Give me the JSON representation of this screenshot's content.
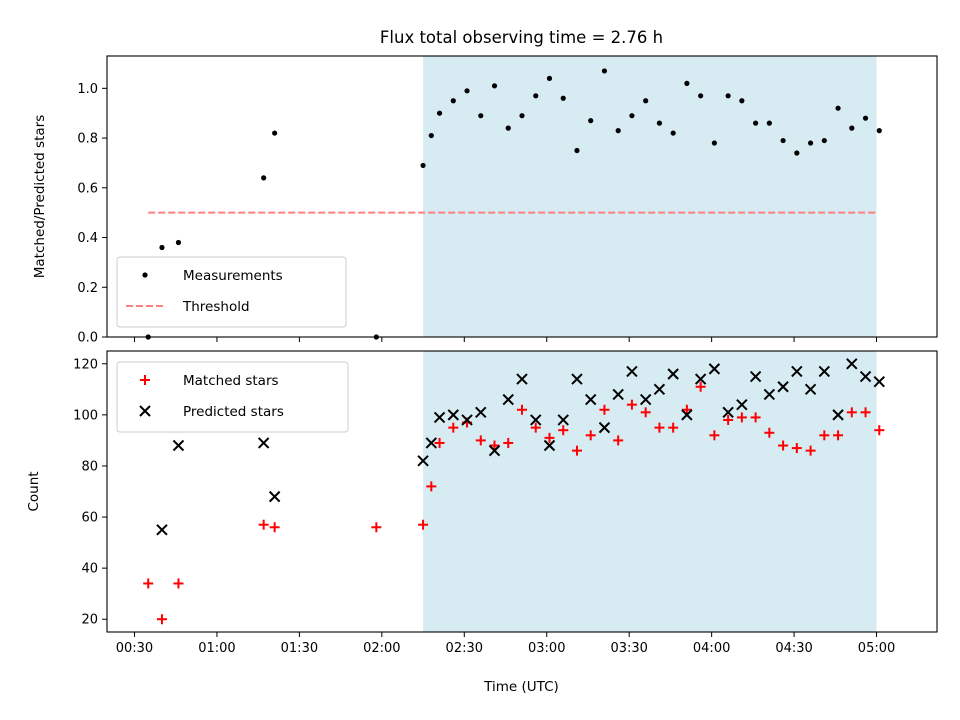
{
  "chart_data": {
    "type": "scatter",
    "title": "Flux total observing time = 2.76 h",
    "xlabel": "Time (UTC)",
    "x_ticks": [
      "00:30",
      "01:00",
      "01:30",
      "02:00",
      "02:30",
      "03:00",
      "03:30",
      "04:00",
      "04:30",
      "05:00"
    ],
    "colors": {
      "span": "#add8e6",
      "measurements": "#000000",
      "threshold": "#ff7f7f",
      "matched": "#ff0000",
      "predicted": "#000000"
    },
    "x_range": [
      "00:20",
      "05:22"
    ],
    "span": [
      "02:15",
      "05:00"
    ],
    "panels": [
      {
        "ylabel": "Matched/Predicted stars",
        "ylim": [
          0,
          1.13
        ],
        "y_ticks": [
          "0.0",
          "0.2",
          "0.4",
          "0.6",
          "0.8",
          "1.0"
        ],
        "legend_location": "lower-left",
        "threshold": {
          "value": 0.5,
          "x_from": "00:35",
          "x_to": "05:00"
        },
        "series": [
          {
            "name": "Measurements",
            "marker": "dot",
            "points": [
              [
                "00:35",
                0.0
              ],
              [
                "00:40",
                0.36
              ],
              [
                "00:46",
                0.38
              ],
              [
                "01:17",
                0.64
              ],
              [
                "01:21",
                0.82
              ],
              [
                "01:58",
                0.0
              ],
              [
                "02:15",
                0.69
              ],
              [
                "02:18",
                0.81
              ],
              [
                "02:21",
                0.9
              ],
              [
                "02:26",
                0.95
              ],
              [
                "02:31",
                0.99
              ],
              [
                "02:36",
                0.89
              ],
              [
                "02:41",
                1.01
              ],
              [
                "02:46",
                0.84
              ],
              [
                "02:51",
                0.89
              ],
              [
                "02:56",
                0.97
              ],
              [
                "03:01",
                1.04
              ],
              [
                "03:06",
                0.96
              ],
              [
                "03:11",
                0.75
              ],
              [
                "03:16",
                0.87
              ],
              [
                "03:21",
                1.07
              ],
              [
                "03:26",
                0.83
              ],
              [
                "03:31",
                0.89
              ],
              [
                "03:36",
                0.95
              ],
              [
                "03:41",
                0.86
              ],
              [
                "03:46",
                0.82
              ],
              [
                "03:51",
                1.02
              ],
              [
                "03:56",
                0.97
              ],
              [
                "04:01",
                0.78
              ],
              [
                "04:06",
                0.97
              ],
              [
                "04:11",
                0.95
              ],
              [
                "04:16",
                0.86
              ],
              [
                "04:21",
                0.86
              ],
              [
                "04:26",
                0.79
              ],
              [
                "04:31",
                0.74
              ],
              [
                "04:36",
                0.78
              ],
              [
                "04:41",
                0.79
              ],
              [
                "04:46",
                0.92
              ],
              [
                "04:51",
                0.84
              ],
              [
                "04:56",
                0.88
              ],
              [
                "05:01",
                0.83
              ]
            ]
          }
        ],
        "threshold_label": "Threshold"
      },
      {
        "ylabel": "Count",
        "ylim": [
          15,
          125
        ],
        "y_ticks": [
          "20",
          "40",
          "60",
          "80",
          "100",
          "120"
        ],
        "legend_location": "upper-left",
        "series": [
          {
            "name": "Matched stars",
            "marker": "plus",
            "points": [
              [
                "00:35",
                34
              ],
              [
                "00:40",
                20
              ],
              [
                "00:46",
                34
              ],
              [
                "01:17",
                57
              ],
              [
                "01:21",
                56
              ],
              [
                "01:58",
                56
              ],
              [
                "02:15",
                57
              ],
              [
                "02:18",
                72
              ],
              [
                "02:21",
                89
              ],
              [
                "02:26",
                95
              ],
              [
                "02:31",
                97
              ],
              [
                "02:36",
                90
              ],
              [
                "02:41",
                88
              ],
              [
                "02:46",
                89
              ],
              [
                "02:51",
                102
              ],
              [
                "02:56",
                95
              ],
              [
                "03:01",
                91
              ],
              [
                "03:06",
                94
              ],
              [
                "03:11",
                86
              ],
              [
                "03:16",
                92
              ],
              [
                "03:21",
                102
              ],
              [
                "03:26",
                90
              ],
              [
                "03:31",
                104
              ],
              [
                "03:36",
                101
              ],
              [
                "03:41",
                95
              ],
              [
                "03:46",
                95
              ],
              [
                "03:51",
                102
              ],
              [
                "03:56",
                111
              ],
              [
                "04:01",
                92
              ],
              [
                "04:06",
                98
              ],
              [
                "04:11",
                99
              ],
              [
                "04:16",
                99
              ],
              [
                "04:21",
                93
              ],
              [
                "04:26",
                88
              ],
              [
                "04:31",
                87
              ],
              [
                "04:36",
                86
              ],
              [
                "04:41",
                92
              ],
              [
                "04:46",
                92
              ],
              [
                "04:51",
                101
              ],
              [
                "04:56",
                101
              ],
              [
                "05:01",
                94
              ]
            ]
          },
          {
            "name": "Predicted stars",
            "marker": "x",
            "points": [
              [
                "00:40",
                55
              ],
              [
                "00:46",
                88
              ],
              [
                "01:17",
                89
              ],
              [
                "01:21",
                68
              ],
              [
                "02:15",
                82
              ],
              [
                "02:18",
                89
              ],
              [
                "02:21",
                99
              ],
              [
                "02:26",
                100
              ],
              [
                "02:31",
                98
              ],
              [
                "02:36",
                101
              ],
              [
                "02:41",
                86
              ],
              [
                "02:46",
                106
              ],
              [
                "02:51",
                114
              ],
              [
                "02:56",
                98
              ],
              [
                "03:01",
                88
              ],
              [
                "03:06",
                98
              ],
              [
                "03:11",
                114
              ],
              [
                "03:16",
                106
              ],
              [
                "03:21",
                95
              ],
              [
                "03:26",
                108
              ],
              [
                "03:31",
                117
              ],
              [
                "03:36",
                106
              ],
              [
                "03:41",
                110
              ],
              [
                "03:46",
                116
              ],
              [
                "03:51",
                100
              ],
              [
                "03:56",
                114
              ],
              [
                "04:01",
                118
              ],
              [
                "04:06",
                101
              ],
              [
                "04:11",
                104
              ],
              [
                "04:16",
                115
              ],
              [
                "04:21",
                108
              ],
              [
                "04:26",
                111
              ],
              [
                "04:31",
                117
              ],
              [
                "04:36",
                110
              ],
              [
                "04:41",
                117
              ],
              [
                "04:46",
                100
              ],
              [
                "04:51",
                120
              ],
              [
                "04:56",
                115
              ],
              [
                "05:01",
                113
              ]
            ]
          }
        ]
      }
    ]
  }
}
